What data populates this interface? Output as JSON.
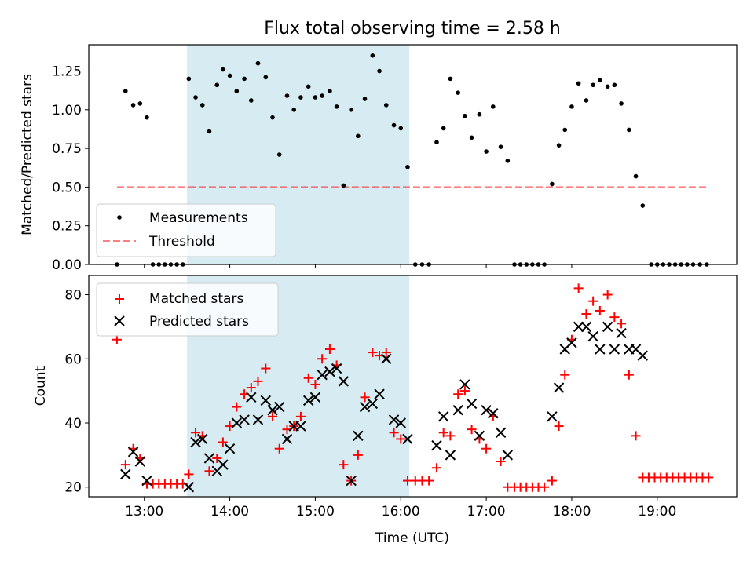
{
  "title": "Flux total observing time = 2.58 h",
  "xlabel": "Time (UTC)",
  "xticks": [
    "13:00",
    "14:00",
    "15:00",
    "16:00",
    "17:00",
    "18:00",
    "19:00"
  ],
  "colors": {
    "highlight": "#add8e6",
    "measurement": "#000000",
    "threshold": "#ff0000",
    "matched": "#ff0000",
    "predicted": "#000000"
  },
  "chart_data": [
    {
      "type": "scatter",
      "ylabel": "Matched/Predicted stars",
      "xlim": [
        12.35,
        19.93
      ],
      "ylim": [
        0.0,
        1.42
      ],
      "yticks": [
        "0.00",
        "0.25",
        "0.50",
        "0.75",
        "1.00",
        "1.25"
      ],
      "highlight_span": [
        13.5,
        16.1
      ],
      "legend_position": "lower-left",
      "series": [
        {
          "name": "Measurements",
          "marker": "dot",
          "points": [
            [
              12.68,
              0.0
            ],
            [
              12.78,
              1.12
            ],
            [
              12.87,
              1.03
            ],
            [
              12.95,
              1.04
            ],
            [
              13.03,
              0.95
            ],
            [
              13.1,
              0.0
            ],
            [
              13.17,
              0.0
            ],
            [
              13.24,
              0.0
            ],
            [
              13.31,
              0.0
            ],
            [
              13.38,
              0.0
            ],
            [
              13.45,
              0.0
            ],
            [
              13.52,
              1.2
            ],
            [
              13.6,
              1.08
            ],
            [
              13.68,
              1.03
            ],
            [
              13.76,
              0.86
            ],
            [
              13.85,
              1.16
            ],
            [
              13.92,
              1.26
            ],
            [
              14.0,
              1.22
            ],
            [
              14.08,
              1.12
            ],
            [
              14.17,
              1.2
            ],
            [
              14.25,
              1.06
            ],
            [
              14.33,
              1.3
            ],
            [
              14.42,
              1.21
            ],
            [
              14.5,
              0.95
            ],
            [
              14.58,
              0.71
            ],
            [
              14.67,
              1.09
            ],
            [
              14.75,
              1.0
            ],
            [
              14.83,
              1.08
            ],
            [
              14.92,
              1.15
            ],
            [
              15.0,
              1.08
            ],
            [
              15.08,
              1.09
            ],
            [
              15.17,
              1.12
            ],
            [
              15.25,
              1.02
            ],
            [
              15.33,
              0.51
            ],
            [
              15.42,
              1.0
            ],
            [
              15.5,
              0.83
            ],
            [
              15.58,
              1.07
            ],
            [
              15.67,
              1.35
            ],
            [
              15.75,
              1.25
            ],
            [
              15.83,
              1.03
            ],
            [
              15.92,
              0.9
            ],
            [
              16.0,
              0.88
            ],
            [
              16.08,
              0.63
            ],
            [
              16.17,
              0.0
            ],
            [
              16.25,
              0.0
            ],
            [
              16.33,
              0.0
            ],
            [
              16.42,
              0.79
            ],
            [
              16.5,
              0.88
            ],
            [
              16.58,
              1.2
            ],
            [
              16.67,
              1.11
            ],
            [
              16.75,
              0.96
            ],
            [
              16.83,
              0.82
            ],
            [
              16.92,
              0.97
            ],
            [
              17.0,
              0.73
            ],
            [
              17.08,
              1.02
            ],
            [
              17.17,
              0.76
            ],
            [
              17.25,
              0.67
            ],
            [
              17.33,
              0.0
            ],
            [
              17.4,
              0.0
            ],
            [
              17.47,
              0.0
            ],
            [
              17.54,
              0.0
            ],
            [
              17.61,
              0.0
            ],
            [
              17.68,
              0.0
            ],
            [
              17.77,
              0.52
            ],
            [
              17.85,
              0.77
            ],
            [
              17.92,
              0.87
            ],
            [
              18.0,
              1.02
            ],
            [
              18.08,
              1.17
            ],
            [
              18.17,
              1.06
            ],
            [
              18.25,
              1.16
            ],
            [
              18.33,
              1.19
            ],
            [
              18.42,
              1.15
            ],
            [
              18.5,
              1.16
            ],
            [
              18.58,
              1.04
            ],
            [
              18.67,
              0.87
            ],
            [
              18.75,
              0.57
            ],
            [
              18.83,
              0.38
            ],
            [
              18.93,
              0.0
            ],
            [
              19.0,
              0.0
            ],
            [
              19.07,
              0.0
            ],
            [
              19.14,
              0.0
            ],
            [
              19.21,
              0.0
            ],
            [
              19.28,
              0.0
            ],
            [
              19.35,
              0.0
            ],
            [
              19.42,
              0.0
            ],
            [
              19.5,
              0.0
            ],
            [
              19.58,
              0.0
            ]
          ]
        },
        {
          "name": "Threshold",
          "marker": "dashed-line",
          "points": [
            [
              12.68,
              0.5
            ],
            [
              19.58,
              0.5
            ]
          ]
        }
      ]
    },
    {
      "type": "scatter",
      "ylabel": "Count",
      "xlim": [
        12.35,
        19.93
      ],
      "ylim": [
        17,
        86
      ],
      "yticks": [
        "20",
        "40",
        "60",
        "80"
      ],
      "highlight_span": [
        13.5,
        16.1
      ],
      "legend_position": "upper-left",
      "series": [
        {
          "name": "Matched stars",
          "marker": "plus",
          "points": [
            [
              12.68,
              66
            ],
            [
              12.78,
              27
            ],
            [
              12.87,
              32
            ],
            [
              12.95,
              29
            ],
            [
              13.03,
              21
            ],
            [
              13.1,
              21
            ],
            [
              13.17,
              21
            ],
            [
              13.24,
              21
            ],
            [
              13.31,
              21
            ],
            [
              13.38,
              21
            ],
            [
              13.45,
              21
            ],
            [
              13.52,
              24
            ],
            [
              13.6,
              37
            ],
            [
              13.68,
              36
            ],
            [
              13.76,
              25
            ],
            [
              13.85,
              29
            ],
            [
              13.92,
              34
            ],
            [
              14.0,
              39
            ],
            [
              14.08,
              45
            ],
            [
              14.17,
              49
            ],
            [
              14.25,
              51
            ],
            [
              14.33,
              53
            ],
            [
              14.42,
              57
            ],
            [
              14.5,
              42
            ],
            [
              14.58,
              32
            ],
            [
              14.67,
              38
            ],
            [
              14.75,
              39
            ],
            [
              14.83,
              42
            ],
            [
              14.92,
              54
            ],
            [
              15.0,
              52
            ],
            [
              15.08,
              60
            ],
            [
              15.17,
              63
            ],
            [
              15.25,
              58
            ],
            [
              15.33,
              27
            ],
            [
              15.42,
              22
            ],
            [
              15.5,
              30
            ],
            [
              15.58,
              48
            ],
            [
              15.67,
              62
            ],
            [
              15.75,
              61
            ],
            [
              15.83,
              62
            ],
            [
              15.92,
              37
            ],
            [
              16.0,
              35
            ],
            [
              16.08,
              22
            ],
            [
              16.17,
              22
            ],
            [
              16.25,
              22
            ],
            [
              16.33,
              22
            ],
            [
              16.42,
              26
            ],
            [
              16.5,
              37
            ],
            [
              16.58,
              36
            ],
            [
              16.67,
              49
            ],
            [
              16.75,
              50
            ],
            [
              16.83,
              38
            ],
            [
              16.92,
              35
            ],
            [
              17.0,
              32
            ],
            [
              17.08,
              42
            ],
            [
              17.17,
              28
            ],
            [
              17.25,
              20
            ],
            [
              17.33,
              20
            ],
            [
              17.4,
              20
            ],
            [
              17.47,
              20
            ],
            [
              17.54,
              20
            ],
            [
              17.61,
              20
            ],
            [
              17.68,
              20
            ],
            [
              17.77,
              22
            ],
            [
              17.85,
              39
            ],
            [
              17.92,
              55
            ],
            [
              18.0,
              66
            ],
            [
              18.08,
              82
            ],
            [
              18.17,
              74
            ],
            [
              18.25,
              78
            ],
            [
              18.33,
              75
            ],
            [
              18.42,
              80
            ],
            [
              18.5,
              73
            ],
            [
              18.58,
              71
            ],
            [
              18.67,
              55
            ],
            [
              18.75,
              36
            ],
            [
              18.83,
              23
            ],
            [
              18.9,
              23
            ],
            [
              18.97,
              23
            ],
            [
              19.04,
              23
            ],
            [
              19.11,
              23
            ],
            [
              19.18,
              23
            ],
            [
              19.25,
              23
            ],
            [
              19.32,
              23
            ],
            [
              19.39,
              23
            ],
            [
              19.46,
              23
            ],
            [
              19.53,
              23
            ],
            [
              19.6,
              23
            ]
          ]
        },
        {
          "name": "Predicted stars",
          "marker": "x",
          "points": [
            [
              12.78,
              24
            ],
            [
              12.87,
              31
            ],
            [
              12.95,
              28
            ],
            [
              13.03,
              22
            ],
            [
              13.52,
              20
            ],
            [
              13.6,
              34
            ],
            [
              13.68,
              35
            ],
            [
              13.76,
              29
            ],
            [
              13.85,
              25
            ],
            [
              13.92,
              27
            ],
            [
              14.0,
              32
            ],
            [
              14.08,
              40
            ],
            [
              14.17,
              41
            ],
            [
              14.25,
              48
            ],
            [
              14.33,
              41
            ],
            [
              14.42,
              47
            ],
            [
              14.5,
              44
            ],
            [
              14.58,
              45
            ],
            [
              14.67,
              35
            ],
            [
              14.75,
              39
            ],
            [
              14.83,
              39
            ],
            [
              14.92,
              47
            ],
            [
              15.0,
              48
            ],
            [
              15.08,
              55
            ],
            [
              15.17,
              56
            ],
            [
              15.25,
              57
            ],
            [
              15.33,
              53
            ],
            [
              15.42,
              22
            ],
            [
              15.5,
              36
            ],
            [
              15.58,
              45
            ],
            [
              15.67,
              46
            ],
            [
              15.75,
              49
            ],
            [
              15.83,
              60
            ],
            [
              15.92,
              41
            ],
            [
              16.0,
              40
            ],
            [
              16.08,
              35
            ],
            [
              16.42,
              33
            ],
            [
              16.5,
              42
            ],
            [
              16.58,
              30
            ],
            [
              16.67,
              44
            ],
            [
              16.75,
              52
            ],
            [
              16.83,
              46
            ],
            [
              16.92,
              36
            ],
            [
              17.0,
              44
            ],
            [
              17.08,
              43
            ],
            [
              17.17,
              37
            ],
            [
              17.25,
              30
            ],
            [
              17.77,
              42
            ],
            [
              17.85,
              51
            ],
            [
              17.92,
              63
            ],
            [
              18.0,
              65
            ],
            [
              18.08,
              70
            ],
            [
              18.17,
              70
            ],
            [
              18.25,
              67
            ],
            [
              18.33,
              63
            ],
            [
              18.42,
              70
            ],
            [
              18.5,
              63
            ],
            [
              18.58,
              68
            ],
            [
              18.67,
              63
            ],
            [
              18.75,
              63
            ],
            [
              18.83,
              61
            ]
          ]
        }
      ]
    }
  ]
}
